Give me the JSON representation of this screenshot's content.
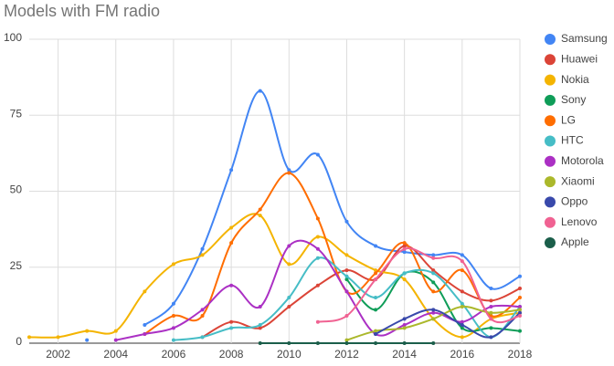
{
  "chart_data": {
    "type": "line",
    "title": "Models with FM radio",
    "x": [
      2001,
      2002,
      2003,
      2004,
      2005,
      2006,
      2007,
      2008,
      2009,
      2010,
      2011,
      2012,
      2013,
      2014,
      2015,
      2016,
      2017,
      2018
    ],
    "xlim": [
      2001,
      2018
    ],
    "xticks": [
      2002,
      2004,
      2006,
      2008,
      2010,
      2012,
      2014,
      2016,
      2018
    ],
    "ylim": [
      0,
      100
    ],
    "yticks": [
      0,
      25,
      50,
      75,
      100
    ],
    "grid": true,
    "legend": "right",
    "series": [
      {
        "name": "Samsung",
        "color": "#4285f4",
        "values": [
          null,
          null,
          1,
          null,
          6,
          13,
          31,
          57,
          83,
          57,
          62,
          40,
          32,
          30,
          29,
          29,
          18,
          22
        ]
      },
      {
        "name": "Huawei",
        "color": "#db4437",
        "values": [
          null,
          null,
          null,
          null,
          null,
          null,
          2,
          7,
          5,
          12,
          19,
          24,
          21,
          32,
          24,
          17,
          14,
          18
        ]
      },
      {
        "name": "Nokia",
        "color": "#f4b400",
        "values": [
          2,
          2,
          4,
          4,
          17,
          26,
          29,
          38,
          42,
          26,
          35,
          29,
          24,
          21,
          8,
          2,
          8,
          10
        ]
      },
      {
        "name": "Sony",
        "color": "#0f9d58",
        "values": [
          null,
          null,
          null,
          null,
          null,
          null,
          null,
          null,
          null,
          null,
          null,
          21,
          11,
          23,
          20,
          5,
          5,
          4
        ]
      },
      {
        "name": "LG",
        "color": "#ff6d00",
        "values": [
          null,
          null,
          null,
          null,
          3,
          9,
          9,
          33,
          44,
          56,
          41,
          17,
          23,
          33,
          17,
          24,
          9,
          15
        ]
      },
      {
        "name": "HTC",
        "color": "#46bdc6",
        "values": [
          null,
          null,
          null,
          null,
          null,
          1,
          2,
          5,
          6,
          15,
          28,
          22,
          15,
          23,
          23,
          13,
          2,
          12
        ]
      },
      {
        "name": "Motorola",
        "color": "#ab30c4",
        "values": [
          null,
          null,
          null,
          1,
          3,
          5,
          11,
          19,
          12,
          32,
          31,
          17,
          3,
          6,
          10,
          7,
          12,
          12
        ]
      },
      {
        "name": "Xiaomi",
        "color": "#abb82b",
        "values": [
          null,
          null,
          null,
          null,
          null,
          null,
          null,
          null,
          null,
          null,
          null,
          1,
          4,
          5,
          8,
          12,
          10,
          11
        ]
      },
      {
        "name": "Oppo",
        "color": "#3949ab",
        "values": [
          null,
          null,
          null,
          null,
          null,
          null,
          null,
          null,
          null,
          null,
          null,
          null,
          3,
          8,
          11,
          6,
          2,
          10
        ]
      },
      {
        "name": "Lenovo",
        "color": "#f06292",
        "values": [
          null,
          null,
          null,
          null,
          null,
          null,
          null,
          null,
          null,
          null,
          7,
          9,
          21,
          31,
          28,
          27,
          8,
          9
        ]
      },
      {
        "name": "Apple",
        "color": "#1b5e4a",
        "values": [
          null,
          null,
          null,
          null,
          null,
          null,
          null,
          null,
          0,
          0,
          0,
          0,
          0,
          0,
          0,
          null,
          null,
          null
        ]
      }
    ]
  }
}
